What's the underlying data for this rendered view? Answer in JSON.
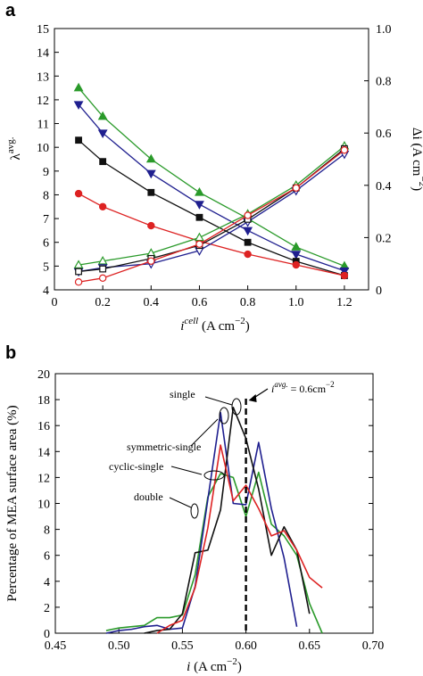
{
  "chart_data": [
    {
      "panel": "a",
      "type": "line",
      "x": [
        0.1,
        0.2,
        0.4,
        0.6,
        0.8,
        1.0,
        1.2
      ],
      "xlim": [
        0,
        1.3
      ],
      "xticks": [
        "0",
        "0.2",
        "0.4",
        "0.6",
        "0.8",
        "1.0",
        "1.2"
      ],
      "xlabel": "i",
      "xlabel_sup": "cell",
      "xlabel_unit": " (A cm",
      "xlabel_unit_sup": "−2",
      "xlabel_close": ")",
      "ylabel": "λ",
      "ylabel_sup": "avg.",
      "ylim": [
        4,
        15
      ],
      "yticks": [
        "4",
        "5",
        "6",
        "7",
        "8",
        "9",
        "10",
        "11",
        "12",
        "13",
        "14",
        "15"
      ],
      "y2label": "Δi (A cm",
      "y2label_sup": "−2",
      "y2label_close": ")",
      "y2lim": [
        0,
        1.0
      ],
      "y2ticks": [
        "0",
        "0.2",
        "0.4",
        "0.6",
        "0.8",
        "1.0"
      ],
      "series": [
        {
          "color": "#2a9a2a",
          "marker": "triangle-up",
          "filled": true,
          "axis": "left",
          "values": [
            12.5,
            11.3,
            9.5,
            8.1,
            7.0,
            5.8,
            5.0
          ]
        },
        {
          "color": "#1f1f8f",
          "marker": "triangle-down",
          "filled": true,
          "axis": "left",
          "values": [
            11.8,
            10.6,
            8.9,
            7.6,
            6.5,
            5.5,
            4.8
          ]
        },
        {
          "color": "#111111",
          "marker": "square",
          "filled": true,
          "axis": "left",
          "values": [
            10.3,
            9.4,
            8.1,
            7.05,
            6.0,
            5.2,
            4.6
          ]
        },
        {
          "color": "#dd2222",
          "marker": "circle",
          "filled": true,
          "axis": "left",
          "values": [
            8.05,
            7.5,
            6.7,
            6.05,
            5.5,
            5.05,
            4.6
          ]
        },
        {
          "color": "#2a9a2a",
          "marker": "triangle-up",
          "filled": false,
          "axis": "right",
          "values": [
            0.095,
            0.11,
            0.14,
            0.2,
            0.29,
            0.4,
            0.55
          ]
        },
        {
          "color": "#1f1f8f",
          "marker": "triangle-down",
          "filled": false,
          "axis": "right",
          "values": [
            0.07,
            0.085,
            0.1,
            0.15,
            0.26,
            0.38,
            0.52
          ]
        },
        {
          "color": "#111111",
          "marker": "square",
          "filled": false,
          "axis": "right",
          "values": [
            0.07,
            0.08,
            0.12,
            0.17,
            0.27,
            0.39,
            0.54
          ]
        },
        {
          "color": "#dd2222",
          "marker": "circle",
          "filled": false,
          "axis": "right",
          "values": [
            0.03,
            0.045,
            0.11,
            0.175,
            0.285,
            0.39,
            0.535
          ]
        }
      ]
    },
    {
      "panel": "b",
      "type": "line",
      "xlim": [
        0.45,
        0.7
      ],
      "xticks": [
        "0.45",
        "0.50",
        "0.55",
        "0.60",
        "0.65",
        "0.70"
      ],
      "xlabel": "i",
      "xlabel_unit": " (A cm",
      "xlabel_unit_sup": "−2",
      "xlabel_close": ")",
      "ylabel": "Percentage of MEA surface area (%)",
      "ylim": [
        0,
        20
      ],
      "yticks": [
        "0",
        "2",
        "4",
        "6",
        "8",
        "10",
        "12",
        "14",
        "16",
        "18",
        "20"
      ],
      "vline": 0.6,
      "vline_label": "i",
      "vline_label_sup": "avg.",
      "vline_label_rest": " = 0.6cm",
      "vline_label_sup2": "−2",
      "annotations": [
        "single",
        "symmetric-single",
        "cyclic-single",
        "double"
      ],
      "series": [
        {
          "color": "#2a9a2a",
          "x": [
            0.49,
            0.5,
            0.51,
            0.52,
            0.53,
            0.54,
            0.55,
            0.56,
            0.57,
            0.58,
            0.59,
            0.6,
            0.61,
            0.62,
            0.63,
            0.64,
            0.65,
            0.66
          ],
          "y": [
            0.2,
            0.4,
            0.5,
            0.6,
            1.2,
            1.2,
            1.4,
            4.5,
            10.5,
            12.3,
            12.0,
            9.0,
            12.4,
            8.4,
            7.5,
            6.0,
            2.3,
            0.0
          ]
        },
        {
          "color": "#1f1f8f",
          "x": [
            0.49,
            0.5,
            0.51,
            0.52,
            0.53,
            0.54,
            0.55,
            0.56,
            0.57,
            0.58,
            0.59,
            0.6,
            0.61,
            0.62,
            0.63,
            0.64
          ],
          "y": [
            0.0,
            0.2,
            0.3,
            0.5,
            0.6,
            0.3,
            0.4,
            3.6,
            10.3,
            17.0,
            10.0,
            9.9,
            14.7,
            9.6,
            5.8,
            0.5
          ]
        },
        {
          "color": "#111111",
          "x": [
            0.52,
            0.53,
            0.54,
            0.55,
            0.56,
            0.57,
            0.58,
            0.59,
            0.6,
            0.61,
            0.62,
            0.63,
            0.64,
            0.65
          ],
          "y": [
            0.0,
            0.2,
            0.3,
            1.5,
            6.2,
            6.4,
            9.5,
            17.4,
            15.0,
            11.1,
            6.0,
            8.2,
            6.4,
            1.5
          ]
        },
        {
          "color": "#dd2222",
          "x": [
            0.53,
            0.54,
            0.55,
            0.56,
            0.57,
            0.58,
            0.59,
            0.6,
            0.61,
            0.62,
            0.63,
            0.64,
            0.65,
            0.66
          ],
          "y": [
            0.0,
            0.6,
            1.0,
            3.5,
            8.1,
            14.5,
            10.2,
            11.4,
            9.6,
            7.5,
            7.9,
            6.4,
            4.3,
            3.5
          ]
        }
      ]
    }
  ]
}
